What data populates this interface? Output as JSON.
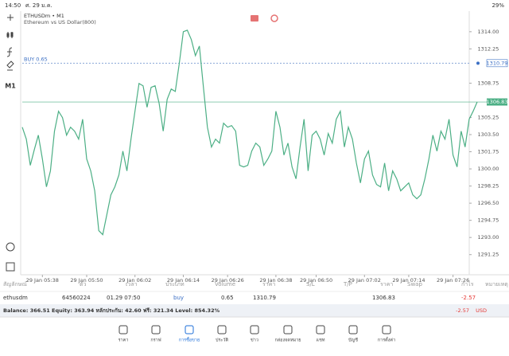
{
  "status_bar": {
    "time": "14:50",
    "date": "ศ. 29 ม.ค.",
    "battery": "29%"
  },
  "header": {
    "symbol": "ETHUSDm • M1",
    "description": "Ethereum vs US Dollar(800)"
  },
  "toolbar": {
    "timeframe": "M1"
  },
  "chart_data": {
    "type": "line",
    "color": "#4caf85",
    "values": [
      1304.26,
      1303.04,
      1300.36,
      1301.98,
      1303.44,
      1301.01,
      1298.17,
      1299.79,
      1303.85,
      1305.88,
      1305.23,
      1303.44,
      1304.26,
      1303.85,
      1303.04,
      1305.07,
      1301.01,
      1299.79,
      1297.76,
      1293.7,
      1293.29,
      1295.32,
      1297.35,
      1298.17,
      1299.38,
      1301.82,
      1299.79,
      1303.04,
      1305.88,
      1308.72,
      1308.48,
      1306.29,
      1308.32,
      1308.48,
      1306.69,
      1303.85,
      1307.1,
      1308.15,
      1307.91,
      1310.75,
      1314.0,
      1314.16,
      1313.19,
      1311.56,
      1312.54,
      1308.32,
      1304.26,
      1302.23,
      1303.04,
      1302.63,
      1304.66,
      1304.26,
      1304.42,
      1303.85,
      1300.36,
      1300.2,
      1300.36,
      1301.82,
      1302.63,
      1302.23,
      1300.36,
      1301.01,
      1301.82,
      1305.88,
      1304.26,
      1301.41,
      1302.63,
      1300.2,
      1298.98,
      1302.23,
      1305.07,
      1299.79,
      1303.44,
      1303.85,
      1303.04,
      1301.41,
      1303.61,
      1302.63,
      1305.07,
      1305.88,
      1302.23,
      1304.26,
      1303.04,
      1300.6,
      1298.57,
      1301.01,
      1301.82,
      1299.38,
      1298.41,
      1298.17,
      1300.6,
      1297.76,
      1299.79,
      1298.98,
      1297.76,
      1298.17,
      1298.57,
      1297.35,
      1296.95,
      1297.35,
      1298.98,
      1301.01,
      1303.44,
      1301.82,
      1303.85,
      1303.04,
      1305.07,
      1301.41,
      1300.2,
      1303.85,
      1302.23,
      1305.07,
      1305.88,
      1306.83
    ],
    "xlim": [
      0,
      113
    ],
    "xticks": [
      {
        "value": 5,
        "label": "29 Jan 05:38"
      },
      {
        "value": 16,
        "label": "29 Jan 05:50"
      },
      {
        "value": 28,
        "label": "29 Jan 06:02"
      },
      {
        "value": 40,
        "label": "29 Jan 06:14"
      },
      {
        "value": 51,
        "label": "29 Jan 06:26"
      },
      {
        "value": 63,
        "label": "29 Jan 06:38"
      },
      {
        "value": 73,
        "label": "29 Jan 06:50"
      },
      {
        "value": 85,
        "label": "29 Jan 07:02"
      },
      {
        "value": 96,
        "label": "29 Jan 07:14"
      },
      {
        "value": 107,
        "label": "29 Jan 07:26"
      }
    ],
    "ylim": [
      1289.6,
      1316.1
    ],
    "yticks": [
      {
        "value": 1314,
        "label": "1314.00"
      },
      {
        "value": 1312.25,
        "label": "1312.25"
      },
      {
        "value": 1308.75,
        "label": "1308.75"
      },
      {
        "value": 1305.25,
        "label": "1305.25"
      },
      {
        "value": 1303.5,
        "label": "1303.50"
      },
      {
        "value": 1301.75,
        "label": "1301.75"
      },
      {
        "value": 1300,
        "label": "1300.00"
      },
      {
        "value": 1298.25,
        "label": "1298.25"
      },
      {
        "value": 1296.5,
        "label": "1296.50"
      },
      {
        "value": 1294.75,
        "label": "1294.75"
      },
      {
        "value": 1293,
        "label": "1293.00"
      },
      {
        "value": 1291.25,
        "label": "1291.25"
      }
    ],
    "order_line": {
      "label": "BUY 0.65",
      "value": 1310.79
    },
    "last_price": 1306.83
  },
  "positions": {
    "headers": [
      "สัญลักษณ์",
      "ตั๋ว",
      "เวลา",
      "ประเภท",
      "Volume",
      "ราคา",
      "S/L",
      "T/P",
      "ราคา",
      "Swap",
      "กำไร",
      "หมายเหตุ"
    ],
    "row": {
      "symbol": "ethusdm",
      "ticket": 64560224,
      "time": "01.29 07:50",
      "type": "buy",
      "volume": 0.65,
      "price_open": 1310.79,
      "price_current": 1306.83,
      "profit": -2.57
    }
  },
  "balance": {
    "summary": "Balance: 366.51 Equity: 363.94 หลักประกัน: 42.60 ฟรี: 321.34 Level: 854.32%",
    "profit": "-2.57",
    "currency": "USD"
  },
  "nav": [
    "ราคา",
    "กราฟ",
    "การซื้อขาย",
    "ประวัติ",
    "ข่าว",
    "กล่องจดหมาย",
    "แชท",
    "บัญชี",
    "การตั้งค่า"
  ]
}
